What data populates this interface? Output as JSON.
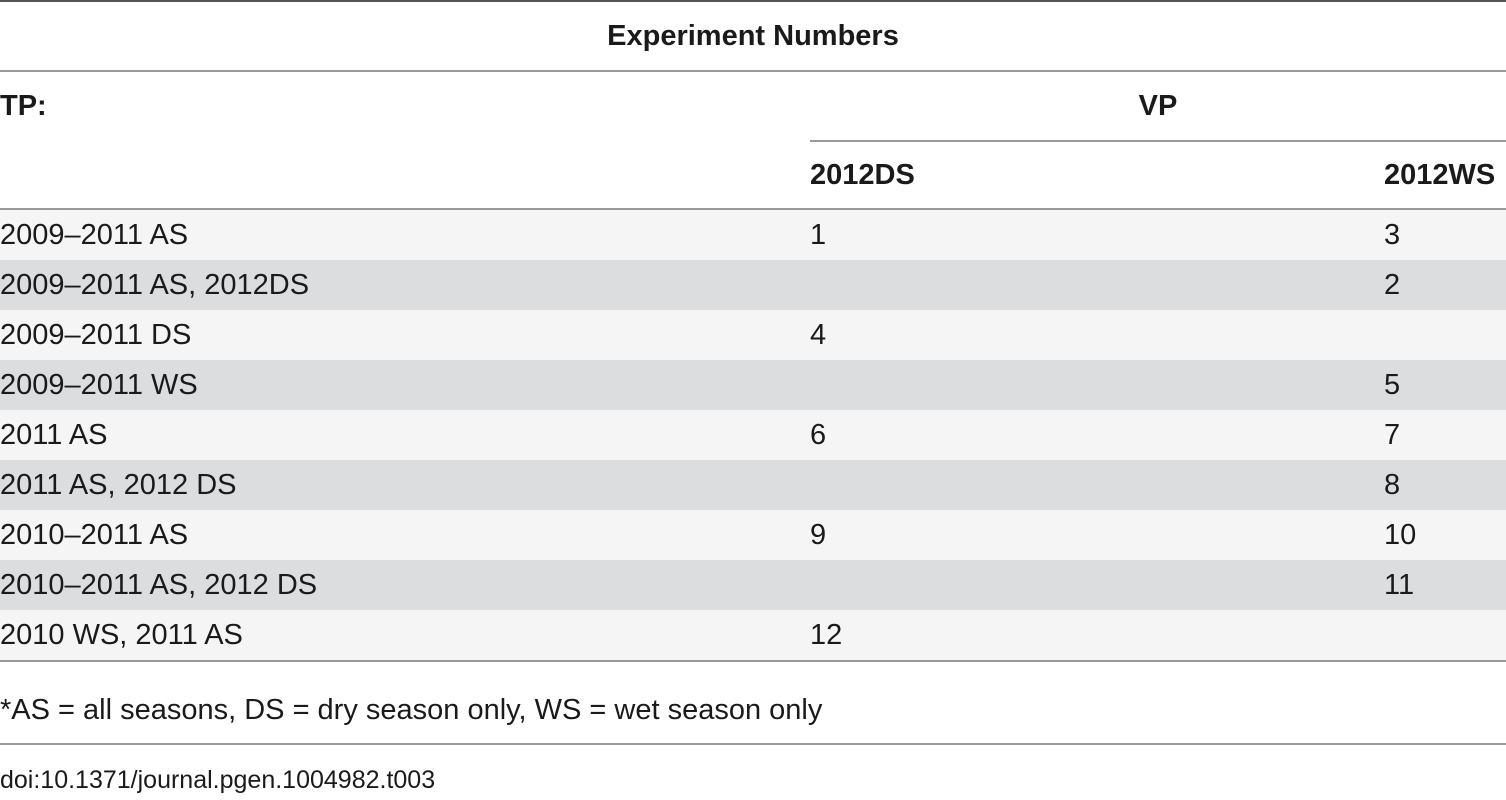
{
  "table": {
    "title": "Experiment Numbers",
    "tp_label": "TP:",
    "vp_label": "VP",
    "columns": [
      "2012DS",
      "2012WS"
    ],
    "rows": [
      {
        "tp": "2009–2011 AS",
        "ds": "1",
        "ws": "3"
      },
      {
        "tp": "2009–2011 AS, 2012DS",
        "ds": "",
        "ws": "2"
      },
      {
        "tp": "2009–2011 DS",
        "ds": "4",
        "ws": ""
      },
      {
        "tp": "2009–2011 WS",
        "ds": "",
        "ws": "5"
      },
      {
        "tp": "2011 AS",
        "ds": "6",
        "ws": "7"
      },
      {
        "tp": "2011 AS, 2012 DS",
        "ds": "",
        "ws": "8"
      },
      {
        "tp": "2010–2011 AS",
        "ds": "9",
        "ws": "10"
      },
      {
        "tp": "2010–2011 AS, 2012 DS",
        "ds": "",
        "ws": "11"
      },
      {
        "tp": "2010 WS, 2011 AS",
        "ds": "12",
        "ws": ""
      }
    ]
  },
  "footnote": "*AS = all seasons, DS = dry season only, WS = wet season only",
  "doi": "doi:10.1371/journal.pgen.1004982.t003",
  "colors": {
    "row_alt": "#dcdddf",
    "row_base": "#f5f5f5",
    "rule": "#9a9a9a"
  }
}
